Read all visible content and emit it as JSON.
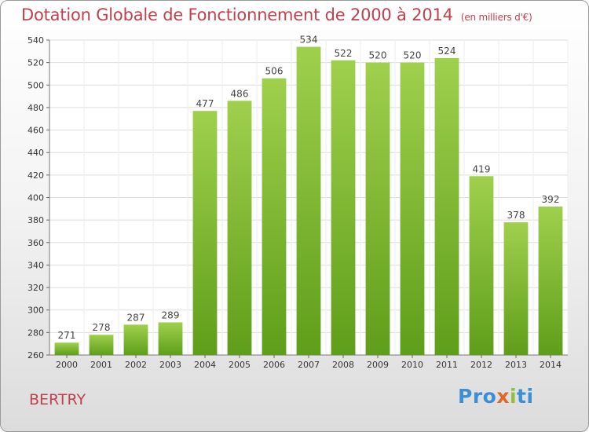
{
  "chart_data": {
    "type": "bar",
    "title": "Dotation Globale de Fonctionnement de 2000 à 2014",
    "subtitle": "(en milliers d'€)",
    "categories": [
      "2000",
      "2001",
      "2002",
      "2003",
      "2004",
      "2005",
      "2006",
      "2007",
      "2008",
      "2009",
      "2010",
      "2011",
      "2012",
      "2013",
      "2014"
    ],
    "values": [
      271,
      278,
      287,
      289,
      477,
      486,
      506,
      534,
      522,
      520,
      520,
      524,
      419,
      378,
      392
    ],
    "ylim": [
      260,
      540
    ],
    "yticks": [
      260,
      280,
      300,
      320,
      340,
      360,
      380,
      400,
      420,
      440,
      460,
      480,
      500,
      520,
      540
    ],
    "grid": true,
    "bar_color_top": "#9fd04d",
    "bar_color_bottom": "#5f9e1a",
    "title_color": "#c0404e"
  },
  "footer": {
    "city": "BERTRY",
    "logo_parts": [
      "Pro",
      "x",
      "i",
      "ti"
    ]
  }
}
